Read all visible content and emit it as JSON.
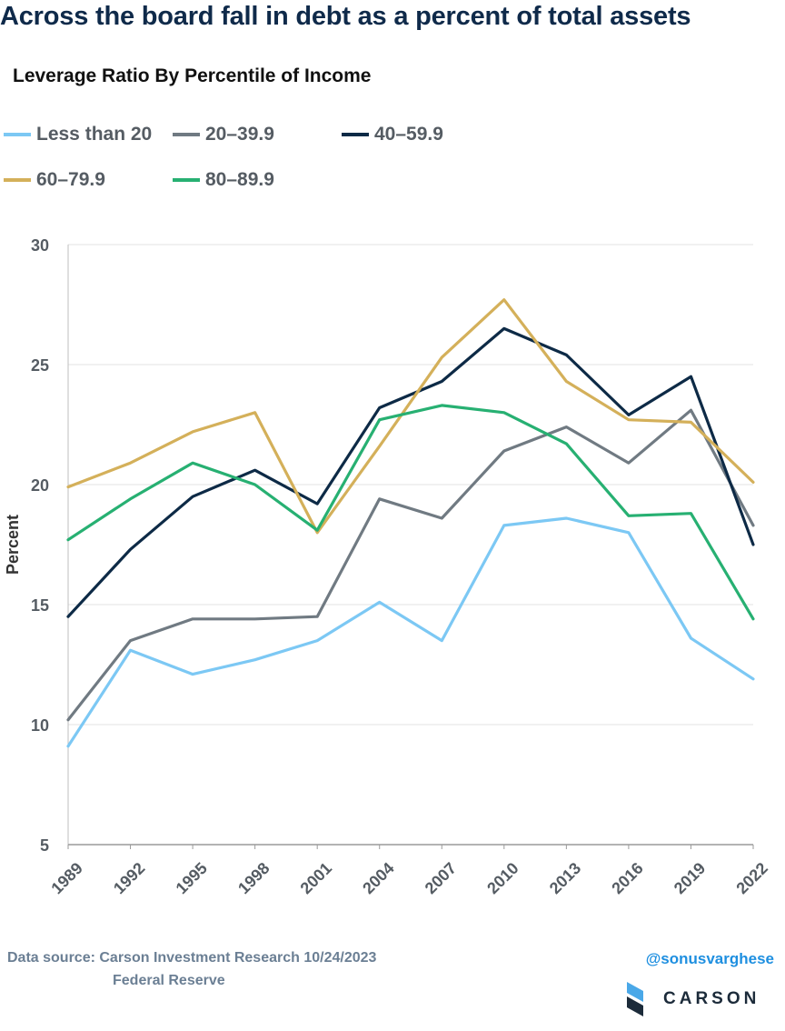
{
  "headline": "Across the board fall in debt as a percent of total assets",
  "chart_data": {
    "type": "line",
    "title": "Leverage Ratio By Percentile of Income",
    "xlabel": "",
    "ylabel": "Percent",
    "ylim": [
      5,
      30
    ],
    "yticks": [
      5,
      10,
      15,
      20,
      25,
      30
    ],
    "grid": true,
    "legend_position": "top",
    "x": [
      "1989",
      "1992",
      "1995",
      "1998",
      "2001",
      "2004",
      "2007",
      "2010",
      "2013",
      "2016",
      "2019",
      "2022"
    ],
    "series": [
      {
        "name": "Less than 20",
        "color": "#7cc8f4",
        "values": [
          9.1,
          13.1,
          12.1,
          12.7,
          13.5,
          15.1,
          13.5,
          18.3,
          18.6,
          18.0,
          13.6,
          11.9
        ]
      },
      {
        "name": "20–39.9",
        "color": "#707a82",
        "values": [
          10.2,
          13.5,
          14.4,
          14.4,
          14.5,
          19.4,
          18.6,
          21.4,
          22.4,
          20.9,
          23.1,
          18.3
        ]
      },
      {
        "name": "40–59.9",
        "color": "#0d2a46",
        "values": [
          14.5,
          17.3,
          19.5,
          20.6,
          19.2,
          23.2,
          24.3,
          26.5,
          25.4,
          22.9,
          24.5,
          17.5
        ]
      },
      {
        "name": "60–79.9",
        "color": "#d4b05a",
        "values": [
          19.9,
          20.9,
          22.2,
          23.0,
          18.0,
          21.6,
          25.3,
          27.7,
          24.3,
          22.7,
          22.6,
          20.1
        ]
      },
      {
        "name": "80–89.9",
        "color": "#27b072",
        "values": [
          17.7,
          19.4,
          20.9,
          20.0,
          18.1,
          22.7,
          23.3,
          23.0,
          21.7,
          18.7,
          18.8,
          14.4
        ]
      }
    ]
  },
  "footer": {
    "source_line1": "Data source: Carson Investment Research   10/24/2023",
    "source_line2": "Federal Reserve",
    "handle": "@sonusvarghese",
    "logo_text": "CARSON"
  }
}
